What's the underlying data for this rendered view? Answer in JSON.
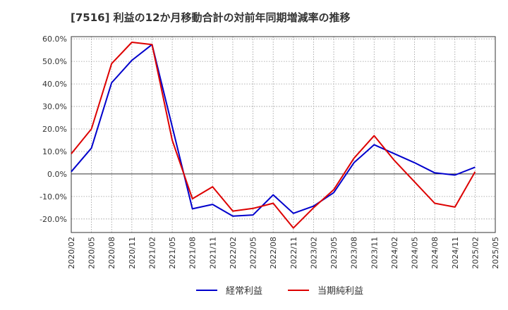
{
  "chart_data": {
    "type": "line",
    "title": "[7516]  利益の12か月移動合計の対前年同期増減率の推移",
    "xlabel": "",
    "ylabel": "",
    "ylim": [
      -26,
      61
    ],
    "y_ticks": [
      60,
      50,
      40,
      30,
      20,
      10,
      0,
      -10,
      -20
    ],
    "y_tick_labels": [
      "60.0%",
      "50.0%",
      "40.0%",
      "30.0%",
      "20.0%",
      "10.0%",
      "0.0%",
      "-10.0%",
      "-20.0%"
    ],
    "categories": [
      "2020/02",
      "2020/05",
      "2020/08",
      "2020/11",
      "2021/02",
      "2021/05",
      "2021/08",
      "2021/11",
      "2022/02",
      "2022/05",
      "2022/08",
      "2022/11",
      "2023/02",
      "2023/05",
      "2023/08",
      "2023/11",
      "2024/02",
      "2024/05",
      "2024/08",
      "2024/11",
      "2025/02",
      "2025/05"
    ],
    "grid": true,
    "legend_position": "bottom",
    "series": [
      {
        "name": "経常利益",
        "color": "#0000cc",
        "values": [
          1.0,
          11.5,
          40.5,
          50.5,
          57.5,
          21.0,
          -15.5,
          -13.5,
          -18.7,
          -18.2,
          -9.3,
          -17.5,
          -14.3,
          -8.3,
          5.0,
          13.0,
          9.0,
          5.0,
          0.5,
          -0.5,
          3.0,
          null
        ]
      },
      {
        "name": "当期純利益",
        "color": "#dd0000",
        "values": [
          9.0,
          20.0,
          49.0,
          58.5,
          57.5,
          15.0,
          -11.0,
          -5.7,
          -16.5,
          -15.3,
          -13.0,
          -24.0,
          -15.0,
          -7.0,
          7.0,
          17.0,
          6.0,
          -3.5,
          -13.0,
          -14.7,
          1.0,
          null
        ]
      }
    ]
  }
}
